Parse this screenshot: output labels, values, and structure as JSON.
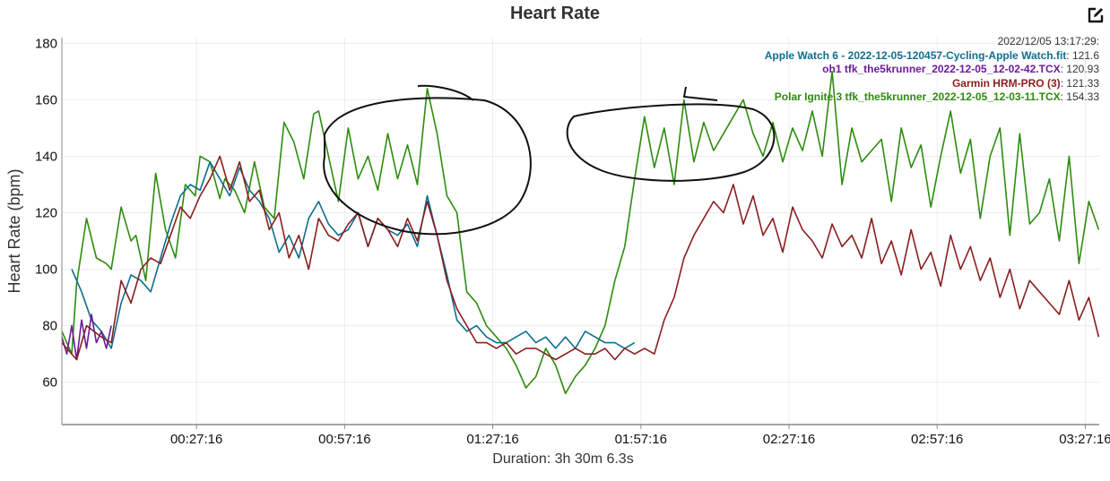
{
  "header": {
    "title": "Heart Rate",
    "edit_icon": "edit-square-icon"
  },
  "legend": {
    "timestamp": "2022/12/05 13:17:29:",
    "entries": [
      {
        "name": "Apple Watch 6 - 2022-12-05-120457-Cycling-Apple Watch.fit",
        "value": "121.6",
        "color": "#0e6e8f"
      },
      {
        "name": "oh1 tfk_the5krunner_2022-12-05_12-02-42.TCX",
        "value": "120.93",
        "color": "#6a1b9a"
      },
      {
        "name": "Garmin HRM-PRO (3)",
        "value": "121.33",
        "color": "#8b1e1e"
      },
      {
        "name": "Polar Ignite 3 tfk_the5krunner_2022-12-05_12-03-11.TCX",
        "value": "154.33",
        "color": "#2e8b0e"
      }
    ]
  },
  "chart_data": {
    "type": "line",
    "title": "Heart Rate",
    "ylabel": "Heart Rate (bpm)",
    "xlabel": "Duration: 3h 30m 6.3s",
    "ylim": [
      45,
      182
    ],
    "yticks": [
      60,
      80,
      100,
      120,
      140,
      160,
      180
    ],
    "x_unit": "minutes",
    "xlim": [
      0,
      210.1
    ],
    "xticks": [
      {
        "value": 27.27,
        "label": "00:27:16"
      },
      {
        "value": 57.27,
        "label": "00:57:16"
      },
      {
        "value": 87.27,
        "label": "01:27:16"
      },
      {
        "value": 117.27,
        "label": "01:57:16"
      },
      {
        "value": 147.27,
        "label": "02:27:16"
      },
      {
        "value": 177.27,
        "label": "02:57:16"
      },
      {
        "value": 207.27,
        "label": "03:27:16"
      }
    ],
    "grid": true,
    "legend_position": "top-right",
    "series": [
      {
        "name": "Polar Ignite 3 tfk_the5krunner_2022-12-05_12-03-11.TCX",
        "color": "#2e8b0e",
        "x": [
          0,
          2,
          3,
          5,
          7,
          9,
          10,
          12,
          14,
          15,
          17,
          19,
          21,
          23,
          25,
          27,
          28,
          30,
          32,
          33,
          35,
          37,
          39,
          41,
          43,
          45,
          47,
          49,
          51,
          52,
          54,
          56,
          58,
          60,
          62,
          64,
          66,
          68,
          70,
          72,
          74,
          76,
          78,
          80,
          82,
          84,
          86,
          88,
          90,
          92,
          94,
          96,
          98,
          100,
          102,
          104,
          106,
          108,
          110,
          112,
          114,
          116,
          118,
          120,
          122,
          124,
          126,
          128,
          130,
          132,
          134,
          136,
          138,
          140,
          142,
          144,
          146,
          148,
          150,
          152,
          154,
          156,
          158,
          160,
          162,
          164,
          166,
          168,
          170,
          172,
          174,
          176,
          178,
          180,
          182,
          184,
          186,
          188,
          190,
          192,
          194,
          196,
          198,
          200,
          202,
          204,
          206,
          208,
          210
        ],
        "y": [
          78,
          70,
          95,
          118,
          104,
          102,
          100,
          122,
          110,
          112,
          96,
          134,
          114,
          104,
          130,
          126,
          140,
          138,
          125,
          132,
          128,
          120,
          138,
          122,
          118,
          152,
          145,
          132,
          155,
          156,
          140,
          124,
          150,
          132,
          140,
          128,
          148,
          132,
          144,
          130,
          164,
          148,
          126,
          120,
          92,
          88,
          80,
          76,
          72,
          66,
          58,
          62,
          72,
          66,
          56,
          62,
          66,
          72,
          80,
          96,
          108,
          132,
          154,
          136,
          150,
          130,
          160,
          138,
          152,
          142,
          148,
          154,
          160,
          148,
          140,
          152,
          138,
          150,
          142,
          156,
          140,
          170,
          130,
          150,
          138,
          142,
          146,
          124,
          150,
          136,
          144,
          122,
          140,
          156,
          134,
          146,
          118,
          140,
          150,
          112,
          148,
          116,
          120,
          132,
          110,
          140,
          102,
          124,
          114
        ]
      },
      {
        "name": "Apple Watch 6 - 2022-12-05-120457-Cycling-Apple Watch.fit",
        "color": "#0e6e8f",
        "x": [
          2,
          4,
          6,
          8,
          10,
          12,
          14,
          16,
          18,
          20,
          22,
          24,
          26,
          28,
          30,
          32,
          34,
          36,
          38,
          40,
          42,
          44,
          46,
          48,
          50,
          52,
          54,
          56,
          58,
          60,
          62,
          64,
          66,
          68,
          70,
          72,
          74,
          76,
          78,
          80,
          82,
          84,
          86,
          88,
          90,
          92,
          94,
          96,
          98,
          100,
          102,
          104,
          106,
          108,
          110,
          112,
          114,
          116
        ],
        "y": [
          100,
          92,
          82,
          78,
          72,
          88,
          98,
          96,
          92,
          104,
          116,
          126,
          130,
          128,
          138,
          132,
          126,
          136,
          128,
          124,
          118,
          106,
          112,
          104,
          118,
          124,
          116,
          112,
          114,
          120,
          108,
          118,
          114,
          112,
          116,
          108,
          126,
          112,
          98,
          82,
          78,
          80,
          76,
          74,
          74,
          76,
          78,
          74,
          76,
          72,
          76,
          72,
          78,
          76,
          74,
          74,
          72,
          74
        ]
      },
      {
        "name": "oh1 tfk_the5krunner_2022-12-05_12-02-42.TCX",
        "color": "#6a1b9a",
        "x": [
          0,
          1,
          2,
          3,
          4,
          5,
          6,
          7,
          8,
          9,
          10
        ],
        "y": [
          76,
          70,
          80,
          68,
          82,
          72,
          84,
          74,
          78,
          72,
          80
        ]
      },
      {
        "name": "Garmin HRM-PRO (3)",
        "color": "#8b1e1e",
        "x": [
          0,
          3,
          5,
          8,
          10,
          12,
          14,
          16,
          18,
          20,
          22,
          24,
          26,
          28,
          30,
          32,
          34,
          36,
          38,
          40,
          42,
          44,
          46,
          48,
          50,
          52,
          54,
          56,
          58,
          60,
          62,
          64,
          66,
          68,
          70,
          72,
          74,
          76,
          78,
          80,
          82,
          84,
          86,
          88,
          90,
          92,
          94,
          96,
          98,
          100,
          102,
          104,
          106,
          108,
          110,
          112,
          114,
          116,
          118,
          120,
          122,
          124,
          126,
          128,
          130,
          132,
          134,
          136,
          138,
          140,
          142,
          144,
          146,
          148,
          150,
          152,
          154,
          156,
          158,
          160,
          162,
          164,
          166,
          168,
          170,
          172,
          174,
          176,
          178,
          180,
          182,
          184,
          186,
          188,
          190,
          192,
          194,
          196,
          198,
          200,
          202,
          204,
          206,
          208,
          210
        ],
        "y": [
          74,
          68,
          80,
          76,
          74,
          96,
          88,
          100,
          104,
          102,
          112,
          122,
          118,
          126,
          132,
          140,
          128,
          138,
          124,
          128,
          114,
          120,
          104,
          112,
          100,
          118,
          112,
          110,
          116,
          120,
          108,
          118,
          114,
          108,
          118,
          110,
          124,
          112,
          96,
          86,
          80,
          74,
          74,
          72,
          74,
          70,
          72,
          72,
          70,
          68,
          70,
          72,
          70,
          70,
          72,
          68,
          72,
          70,
          72,
          70,
          82,
          90,
          104,
          112,
          118,
          124,
          120,
          130,
          116,
          126,
          112,
          118,
          106,
          122,
          114,
          110,
          104,
          116,
          108,
          112,
          104,
          118,
          102,
          110,
          98,
          114,
          100,
          106,
          94,
          112,
          100,
          108,
          96,
          104,
          90,
          100,
          86,
          96,
          92,
          88,
          84,
          96,
          82,
          90,
          76
        ]
      }
    ]
  }
}
